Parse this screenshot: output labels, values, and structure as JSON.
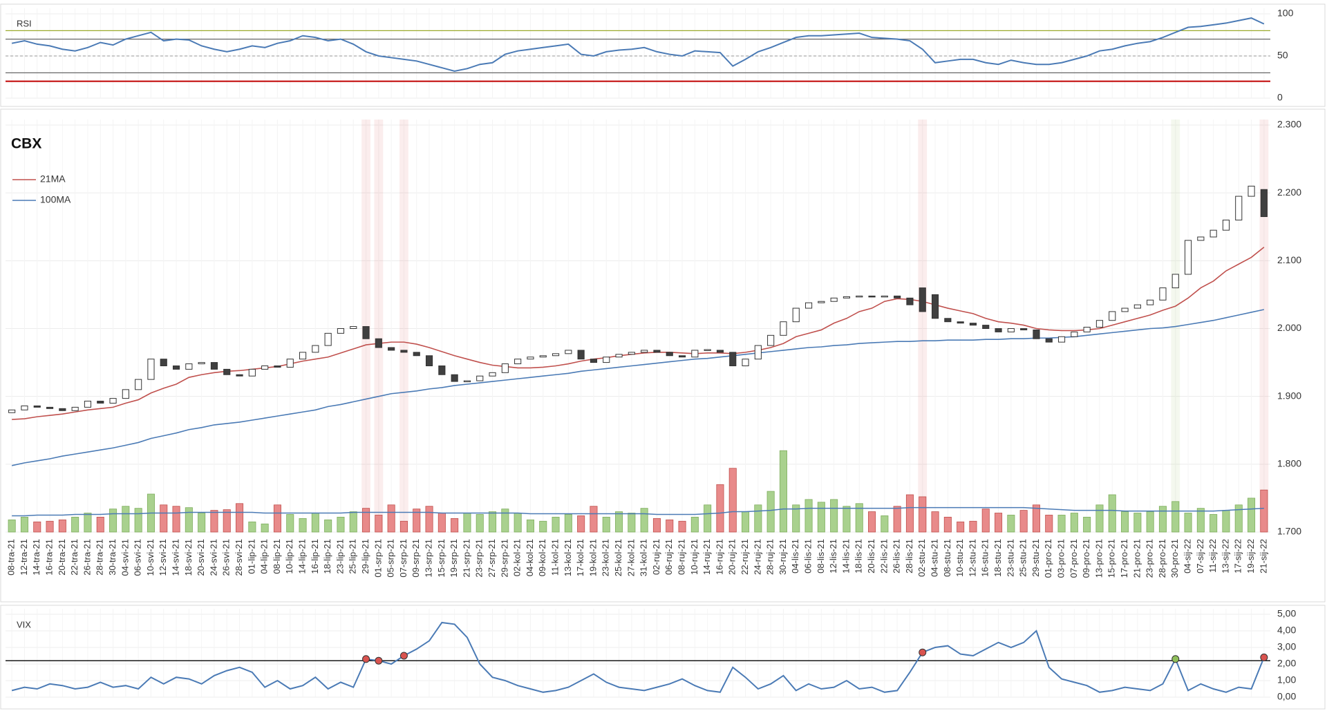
{
  "chart_data": [
    {
      "type": "line",
      "title": "RSI",
      "color": "#4a7ab5",
      "values": [
        65,
        68,
        64,
        62,
        58,
        56,
        60,
        66,
        63,
        70,
        74,
        78,
        68,
        70,
        69,
        62,
        58,
        55,
        58,
        62,
        60,
        65,
        68,
        74,
        72,
        68,
        70,
        64,
        55,
        50,
        48,
        46,
        44,
        40,
        36,
        32,
        35,
        40,
        42,
        52,
        56,
        58,
        60,
        62,
        64,
        52,
        50,
        55,
        57,
        58,
        60,
        55,
        52,
        50,
        56,
        55,
        54,
        38,
        46,
        55,
        60,
        66,
        72,
        74,
        74,
        75,
        76,
        77,
        72,
        71,
        70,
        68,
        58,
        42,
        44,
        46,
        46,
        42,
        40,
        45,
        42,
        40,
        40,
        42,
        46,
        50,
        56,
        58,
        62,
        65,
        67,
        72,
        78,
        84,
        85,
        87,
        89,
        92,
        95,
        88
      ],
      "ylim": [
        0,
        100
      ],
      "yticks": [
        0,
        50,
        100
      ],
      "levels": [
        80,
        70,
        50,
        30,
        20
      ],
      "level_colors": [
        "#9aaa2a",
        "#666666",
        "#aaaaaa",
        "#666666",
        "#c00000"
      ],
      "grid": true
    },
    {
      "type": "candlestick",
      "title": "CBX",
      "categories": [
        "08-tra-21",
        "12-tra-21",
        "14-tra-21",
        "16-tra-21",
        "20-tra-21",
        "22-tra-21",
        "26-tra-21",
        "28-tra-21",
        "30-tra-21",
        "04-svi-21",
        "06-svi-21",
        "10-svi-21",
        "12-svi-21",
        "14-svi-21",
        "18-svi-21",
        "20-svi-21",
        "24-svi-21",
        "26-svi-21",
        "28-svi-21",
        "01-lip-21",
        "04-lip-21",
        "08-lip-21",
        "10-lip-21",
        "14-lip-21",
        "16-lip-21",
        "18-lip-21",
        "23-lip-21",
        "25-lip-21",
        "29-lip-21",
        "01-srp-21",
        "05-srp-21",
        "07-srp-21",
        "09-srp-21",
        "13-srp-21",
        "15-srp-21",
        "19-srp-21",
        "21-srp-21",
        "23-srp-21",
        "27-srp-21",
        "29-srp-21",
        "02-kol-21",
        "04-kol-21",
        "09-kol-21",
        "11-kol-21",
        "13-kol-21",
        "17-kol-21",
        "19-kol-21",
        "23-kol-21",
        "25-kol-21",
        "27-kol-21",
        "31-kol-21",
        "02-ruj-21",
        "06-ruj-21",
        "08-ruj-21",
        "10-ruj-21",
        "14-ruj-21",
        "16-ruj-21",
        "20-ruj-21",
        "22-ruj-21",
        "24-ruj-21",
        "28-ruj-21",
        "30-ruj-21",
        "04-lis-21",
        "06-lis-21",
        "08-lis-21",
        "12-lis-21",
        "14-lis-21",
        "18-lis-21",
        "20-lis-21",
        "22-lis-21",
        "26-lis-21",
        "28-lis-21",
        "02-stu-21",
        "04-stu-21",
        "08-stu-21",
        "10-stu-21",
        "12-stu-21",
        "16-stu-21",
        "18-stu-21",
        "23-stu-21",
        "25-stu-21",
        "29-stu-21",
        "01-pro-21",
        "03-pro-21",
        "07-pro-21",
        "09-pro-21",
        "13-pro-21",
        "15-pro-21",
        "17-pro-21",
        "21-pro-21",
        "23-pro-21",
        "28-pro-21",
        "30-pro-21",
        "04-sij-22",
        "07-sij-22",
        "11-sij-22",
        "13-sij-22",
        "17-sij-22",
        "19-sij-22",
        "21-sij-22"
      ],
      "open": [
        1.876,
        1.88,
        1.886,
        1.884,
        1.882,
        1.879,
        1.884,
        1.893,
        1.89,
        1.897,
        1.91,
        1.925,
        1.955,
        1.945,
        1.94,
        1.948,
        1.95,
        1.94,
        1.932,
        1.93,
        1.94,
        1.945,
        1.943,
        1.955,
        1.965,
        1.975,
        1.993,
        2.0,
        2.003,
        1.985,
        1.972,
        1.968,
        1.965,
        1.96,
        1.945,
        1.932,
        1.922,
        1.923,
        1.93,
        1.935,
        1.948,
        1.955,
        1.958,
        1.96,
        1.963,
        1.968,
        1.955,
        1.95,
        1.958,
        1.962,
        1.965,
        1.968,
        1.965,
        1.96,
        1.958,
        1.968,
        1.968,
        1.965,
        1.945,
        1.955,
        1.975,
        1.99,
        2.01,
        2.03,
        2.038,
        2.04,
        2.045,
        2.047,
        2.048,
        2.047,
        2.048,
        2.045,
        2.06,
        2.05,
        2.015,
        2.01,
        2.008,
        2.005,
        2.0,
        1.995,
        2.0,
        1.998,
        1.985,
        1.98,
        1.988,
        1.995,
        2.002,
        2.012,
        2.025,
        2.03,
        2.035,
        2.042,
        2.06,
        2.08,
        2.13,
        2.135,
        2.145,
        2.16,
        2.195,
        2.205
      ],
      "close": [
        1.88,
        1.886,
        1.884,
        1.882,
        1.879,
        1.884,
        1.893,
        1.89,
        1.897,
        1.91,
        1.925,
        1.955,
        1.945,
        1.94,
        1.948,
        1.95,
        1.94,
        1.932,
        1.93,
        1.94,
        1.945,
        1.943,
        1.955,
        1.965,
        1.975,
        1.993,
        2.0,
        2.003,
        1.985,
        1.972,
        1.968,
        1.965,
        1.96,
        1.945,
        1.932,
        1.922,
        1.923,
        1.93,
        1.935,
        1.948,
        1.955,
        1.958,
        1.96,
        1.963,
        1.968,
        1.955,
        1.95,
        1.958,
        1.962,
        1.965,
        1.968,
        1.965,
        1.96,
        1.958,
        1.968,
        1.969,
        1.965,
        1.945,
        1.955,
        1.975,
        1.99,
        2.01,
        2.03,
        2.038,
        2.04,
        2.045,
        2.047,
        2.048,
        2.047,
        2.048,
        2.045,
        2.035,
        2.025,
        2.015,
        2.01,
        2.008,
        2.005,
        2.0,
        1.995,
        2.0,
        1.998,
        1.985,
        1.98,
        1.988,
        1.995,
        2.002,
        2.012,
        2.025,
        2.03,
        2.035,
        2.042,
        2.06,
        2.08,
        2.13,
        2.135,
        2.145,
        2.16,
        2.195,
        2.21,
        2.165
      ],
      "up_color": "#ffffff",
      "down_color": "#404040",
      "candle_border": "#333333",
      "series": [
        {
          "name": "21MA",
          "color": "#c0504d",
          "values": [
            1.866,
            1.867,
            1.87,
            1.872,
            1.874,
            1.877,
            1.88,
            1.882,
            1.884,
            1.89,
            1.895,
            1.905,
            1.912,
            1.918,
            1.928,
            1.932,
            1.935,
            1.937,
            1.938,
            1.94,
            1.942,
            1.944,
            1.948,
            1.952,
            1.955,
            1.958,
            1.964,
            1.97,
            1.976,
            1.978,
            1.98,
            1.98,
            1.977,
            1.972,
            1.966,
            1.96,
            1.955,
            1.95,
            1.946,
            1.944,
            1.942,
            1.942,
            1.943,
            1.945,
            1.948,
            1.952,
            1.955,
            1.957,
            1.96,
            1.962,
            1.964,
            1.965,
            1.965,
            1.964,
            1.963,
            1.964,
            1.964,
            1.963,
            1.965,
            1.968,
            1.972,
            1.978,
            1.988,
            1.993,
            1.998,
            2.008,
            2.015,
            2.025,
            2.03,
            2.04,
            2.044,
            2.043,
            2.04,
            2.035,
            2.03,
            2.026,
            2.022,
            2.015,
            2.01,
            2.008,
            2.005,
            2.0,
            1.998,
            1.997,
            1.997,
            1.998,
            2.0,
            2.005,
            2.01,
            2.015,
            2.02,
            2.027,
            2.033,
            2.045,
            2.06,
            2.07,
            2.085,
            2.095,
            2.105,
            2.12
          ]
        },
        {
          "name": "100MA",
          "color": "#4a7ab5",
          "values": [
            1.798,
            1.802,
            1.805,
            1.808,
            1.812,
            1.815,
            1.818,
            1.821,
            1.824,
            1.828,
            1.832,
            1.838,
            1.842,
            1.846,
            1.851,
            1.854,
            1.858,
            1.86,
            1.862,
            1.865,
            1.868,
            1.871,
            1.874,
            1.877,
            1.88,
            1.885,
            1.888,
            1.892,
            1.896,
            1.9,
            1.904,
            1.906,
            1.908,
            1.911,
            1.913,
            1.916,
            1.918,
            1.92,
            1.922,
            1.924,
            1.926,
            1.928,
            1.93,
            1.932,
            1.934,
            1.937,
            1.939,
            1.941,
            1.943,
            1.945,
            1.947,
            1.949,
            1.951,
            1.953,
            1.955,
            1.956,
            1.958,
            1.96,
            1.962,
            1.964,
            1.966,
            1.968,
            1.97,
            1.972,
            1.973,
            1.975,
            1.976,
            1.978,
            1.979,
            1.98,
            1.981,
            1.981,
            1.982,
            1.982,
            1.983,
            1.983,
            1.983,
            1.984,
            1.984,
            1.985,
            1.985,
            1.986,
            1.986,
            1.987,
            1.988,
            1.99,
            1.992,
            1.994,
            1.996,
            1.998,
            2.0,
            2.001,
            2.003,
            2.006,
            2.009,
            2.012,
            2.016,
            2.02,
            2.024,
            2.028
          ]
        }
      ],
      "volume": [
        1.718,
        1.722,
        1.715,
        1.716,
        1.718,
        1.722,
        1.728,
        1.722,
        1.734,
        1.738,
        1.735,
        1.756,
        1.74,
        1.738,
        1.736,
        1.728,
        1.732,
        1.733,
        1.742,
        1.715,
        1.712,
        1.74,
        1.726,
        1.72,
        1.728,
        1.718,
        1.722,
        1.73,
        1.735,
        1.725,
        1.74,
        1.716,
        1.734,
        1.738,
        1.728,
        1.72,
        1.728,
        1.726,
        1.73,
        1.734,
        1.728,
        1.718,
        1.716,
        1.722,
        1.726,
        1.724,
        1.738,
        1.722,
        1.73,
        1.728,
        1.735,
        1.72,
        1.718,
        1.716,
        1.722,
        1.74,
        1.77,
        1.794,
        1.73,
        1.74,
        1.76,
        1.82,
        1.74,
        1.748,
        1.744,
        1.748,
        1.738,
        1.742,
        1.73,
        1.724,
        1.738,
        1.755,
        1.752,
        1.73,
        1.722,
        1.715,
        1.716,
        1.734,
        1.728,
        1.725,
        1.732,
        1.74,
        1.725,
        1.725,
        1.728,
        1.722,
        1.74,
        1.755,
        1.73,
        1.728,
        1.73,
        1.738,
        1.745,
        1.728,
        1.735,
        1.726,
        1.732,
        1.74,
        1.75,
        1.762
      ],
      "volume_up_color": "#a9d18e",
      "volume_down_color": "#e88a8a",
      "volume_avg": [
        1.724,
        1.724,
        1.725,
        1.725,
        1.725,
        1.726,
        1.726,
        1.726,
        1.727,
        1.727,
        1.727,
        1.728,
        1.728,
        1.728,
        1.729,
        1.729,
        1.729,
        1.729,
        1.729,
        1.729,
        1.728,
        1.728,
        1.728,
        1.728,
        1.728,
        1.728,
        1.728,
        1.729,
        1.729,
        1.729,
        1.729,
        1.729,
        1.729,
        1.729,
        1.728,
        1.728,
        1.728,
        1.728,
        1.728,
        1.728,
        1.728,
        1.727,
        1.727,
        1.727,
        1.727,
        1.727,
        1.727,
        1.727,
        1.727,
        1.727,
        1.727,
        1.726,
        1.726,
        1.726,
        1.726,
        1.727,
        1.728,
        1.73,
        1.73,
        1.731,
        1.732,
        1.734,
        1.734,
        1.735,
        1.735,
        1.735,
        1.735,
        1.735,
        1.735,
        1.735,
        1.735,
        1.736,
        1.736,
        1.736,
        1.736,
        1.736,
        1.736,
        1.736,
        1.736,
        1.736,
        1.736,
        1.735,
        1.734,
        1.733,
        1.732,
        1.732,
        1.732,
        1.732,
        1.731,
        1.731,
        1.731,
        1.731,
        1.731,
        1.731,
        1.731,
        1.731,
        1.732,
        1.733,
        1.734,
        1.735
      ],
      "volume_avg_color": "#4a7ab5",
      "ylim": [
        1.7,
        2.3
      ],
      "yticks": [
        {
          "value": 1.7,
          "label": "1.700"
        },
        {
          "value": 1.8,
          "label": "1.800"
        },
        {
          "value": 1.9,
          "label": "1.900"
        },
        {
          "value": 2.0,
          "label": "2.000"
        },
        {
          "value": 2.1,
          "label": "2.100"
        },
        {
          "value": 2.2,
          "label": "2.200"
        },
        {
          "value": 2.3,
          "label": "2.300"
        }
      ],
      "grid": true
    },
    {
      "type": "line",
      "title": "VIX",
      "color": "#4a7ab5",
      "values": [
        0.4,
        0.6,
        0.5,
        0.8,
        0.7,
        0.5,
        0.6,
        0.9,
        0.6,
        0.7,
        0.5,
        1.2,
        0.8,
        1.2,
        1.1,
        0.8,
        1.3,
        1.6,
        1.8,
        1.5,
        0.6,
        1.0,
        0.5,
        0.7,
        1.2,
        0.5,
        0.9,
        0.6,
        2.3,
        2.2,
        2.0,
        2.5,
        2.9,
        3.4,
        4.5,
        4.4,
        3.6,
        2.0,
        1.2,
        1.0,
        0.7,
        0.5,
        0.3,
        0.4,
        0.6,
        1.0,
        1.4,
        0.9,
        0.6,
        0.5,
        0.4,
        0.6,
        0.8,
        1.1,
        0.7,
        0.4,
        0.3,
        1.8,
        1.2,
        0.5,
        0.8,
        1.3,
        0.4,
        0.8,
        0.5,
        0.6,
        1.0,
        0.5,
        0.6,
        0.3,
        0.4,
        1.5,
        2.7,
        3.0,
        3.1,
        2.6,
        2.5,
        2.9,
        3.3,
        3.0,
        3.3,
        4.0,
        1.8,
        1.1,
        0.9,
        0.7,
        0.3,
        0.4,
        0.6,
        0.5,
        0.4,
        0.8,
        2.3,
        0.4,
        0.8,
        0.5,
        0.3,
        0.6,
        0.5,
        2.4
      ],
      "ylim": [
        0,
        5
      ],
      "yticks": [
        {
          "value": 0,
          "label": "0,00"
        },
        {
          "value": 1,
          "label": "1,00"
        },
        {
          "value": 2,
          "label": "2,00"
        },
        {
          "value": 3,
          "label": "3,00"
        },
        {
          "value": 4,
          "label": "4,00"
        },
        {
          "value": 5,
          "label": "5,00"
        }
      ],
      "threshold": 2.2,
      "threshold_color": "#000000",
      "signals": [
        {
          "x": "29-lip-21",
          "color": "#d9534f"
        },
        {
          "x": "01-srp-21",
          "color": "#d9534f"
        },
        {
          "x": "07-srp-21",
          "color": "#d9534f"
        },
        {
          "x": "02-stu-21",
          "color": "#d9534f"
        },
        {
          "x": "30-pro-21",
          "color": "#8fbf5a"
        },
        {
          "x": "21-sij-22",
          "color": "#d9534f"
        }
      ],
      "grid": true
    }
  ]
}
